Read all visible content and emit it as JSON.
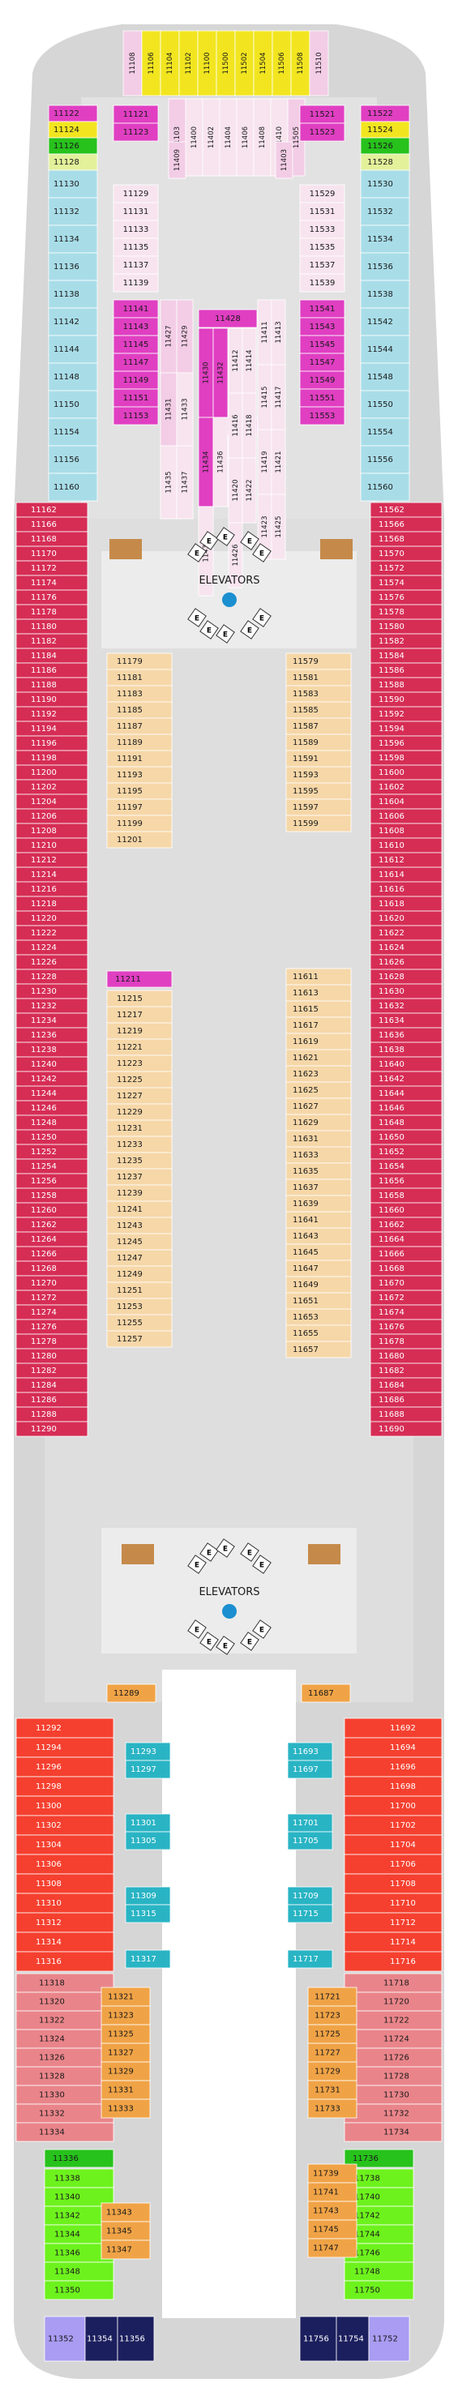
{
  "labels": {
    "elevators_fwd": "ELEVATORS",
    "elevators_aft": "ELEVATORS",
    "elevator_letter": "E"
  },
  "colors": {
    "hull": "#d6d6d6",
    "corridor": "#bdbdbd",
    "public": "#dcdcdc",
    "yellow": "#f2e520",
    "green": "#27c21c",
    "lime": "#e3f19a",
    "cyan": "#a8dde8",
    "cyan_dark": "#29b4c4",
    "magenta": "#e03fc2",
    "magenta_light": "#f3cde6",
    "pink_light": "#f7e4ee",
    "crimson": "#d62d55",
    "peach": "#f6d7a8",
    "red": "#f5402f",
    "salmon": "#e9858a",
    "orange": "#f0a346",
    "bright_green": "#6df21d",
    "lavender": "#a99cf2",
    "navy": "#1c1f5e",
    "elevator_blue": "#1b8fd0"
  },
  "cabins": {
    "fwd_suites_top": [
      "11108",
      "11106",
      "11104",
      "11102",
      "11100",
      "11500",
      "11502",
      "11504",
      "11506",
      "11508",
      "11510"
    ],
    "fwd_suites_mid": [
      "11103",
      "11400",
      "11402",
      "11404",
      "11406",
      "11408",
      "11410",
      "11505"
    ],
    "fwd_suites_low": [
      "11409",
      "11403"
    ],
    "port_fwd_outer": [
      "11122",
      "11124",
      "11126",
      "11128",
      "11130",
      "11132",
      "11134",
      "11136",
      "11138",
      "11142",
      "11144",
      "11148",
      "11150",
      "11154",
      "11156",
      "11160"
    ],
    "port_fwd_inner_a": [
      "11121",
      "11123"
    ],
    "port_fwd_inner_b": [
      "11129",
      "11131",
      "11133",
      "11135",
      "11137",
      "11139"
    ],
    "port_fwd_inner_c": [
      "11141",
      "11143",
      "11145",
      "11147",
      "11149",
      "11151",
      "11153"
    ],
    "stbd_fwd_outer": [
      "11522",
      "11524",
      "11526",
      "11528",
      "11530",
      "11532",
      "11534",
      "11536",
      "11538",
      "11542",
      "11544",
      "11548",
      "11550",
      "11554",
      "11556",
      "11560"
    ],
    "stbd_fwd_inner_a": [
      "11521",
      "11523"
    ],
    "stbd_fwd_inner_b": [
      "11529",
      "11531",
      "11533",
      "11535",
      "11537",
      "11539"
    ],
    "stbd_fwd_inner_c": [
      "11541",
      "11543",
      "11545",
      "11547",
      "11549",
      "11551",
      "11553"
    ],
    "center_top": "11428",
    "center_col_1": [
      "11427",
      "11429",
      "11431",
      "11433",
      "11435",
      "11437"
    ],
    "center_col_2": [
      "11430",
      "11432",
      "11434",
      "11436",
      "11438"
    ],
    "center_col_3": [
      "11412",
      "11414",
      "11416",
      "11418",
      "11420",
      "11422",
      "11426"
    ],
    "center_col_4": [
      "11411",
      "11413",
      "11415",
      "11417",
      "11419",
      "11421",
      "11423",
      "11425"
    ],
    "center_mid": "11420",
    "port_main_outer": [
      "11162",
      "11166",
      "11168",
      "11170",
      "11172",
      "11174",
      "11176",
      "11178",
      "11180",
      "11182",
      "11184",
      "11186",
      "11188",
      "11190",
      "11192",
      "11194",
      "11196",
      "11198",
      "11200",
      "11202",
      "11204",
      "11206",
      "11208",
      "11210",
      "11212",
      "11214",
      "11216",
      "11218",
      "11220",
      "11222",
      "11224",
      "11226",
      "11228",
      "11230",
      "11232",
      "11234",
      "11236",
      "11238",
      "11240",
      "11242",
      "11244",
      "11246",
      "11248",
      "11250",
      "11252",
      "11254",
      "11256",
      "11258",
      "11260",
      "11262",
      "11264",
      "11266",
      "11268",
      "11270",
      "11272",
      "11274",
      "11276",
      "11278",
      "11280",
      "11282",
      "11284",
      "11286",
      "11288",
      "11290"
    ],
    "stbd_main_outer": [
      "11562",
      "11566",
      "11568",
      "11570",
      "11572",
      "11574",
      "11576",
      "11578",
      "11580",
      "11582",
      "11584",
      "11586",
      "11588",
      "11590",
      "11592",
      "11594",
      "11596",
      "11598",
      "11600",
      "11602",
      "11604",
      "11606",
      "11608",
      "11610",
      "11612",
      "11614",
      "11616",
      "11618",
      "11620",
      "11622",
      "11624",
      "11626",
      "11628",
      "11630",
      "11632",
      "11634",
      "11636",
      "11638",
      "11640",
      "11642",
      "11644",
      "11646",
      "11648",
      "11650",
      "11652",
      "11654",
      "11656",
      "11658",
      "11660",
      "11662",
      "11664",
      "11666",
      "11668",
      "11670",
      "11672",
      "11674",
      "11676",
      "11678",
      "11680",
      "11682",
      "11684",
      "11686",
      "11688",
      "11690"
    ],
    "port_main_inner_1": [
      "11179",
      "11181",
      "11183",
      "11185",
      "11187",
      "11189",
      "11191",
      "11193",
      "11195",
      "11197",
      "11199",
      "11201"
    ],
    "port_main_inner_2_head": "11211",
    "port_main_inner_2": [
      "11215",
      "11217",
      "11219",
      "11221",
      "11223",
      "11225",
      "11227",
      "11229",
      "11231",
      "11233",
      "11235",
      "11237",
      "11239",
      "11241",
      "11243",
      "11245",
      "11247",
      "11249",
      "11251",
      "11253",
      "11255",
      "11257"
    ],
    "stbd_main_inner_1": [
      "11579",
      "11581",
      "11583",
      "11585",
      "11587",
      "11589",
      "11591",
      "11593",
      "11595",
      "11597",
      "11599"
    ],
    "stbd_main_inner_2": [
      "11611",
      "11613",
      "11615",
      "11617",
      "11619",
      "11621",
      "11623",
      "11625",
      "11627",
      "11629",
      "11631",
      "11633",
      "11635",
      "11637",
      "11639",
      "11641",
      "11643",
      "11645",
      "11647",
      "11649",
      "11651",
      "11653",
      "11655",
      "11657"
    ],
    "port_aft_single": "11289",
    "stbd_aft_single": "11687",
    "port_aft_outer_red": [
      "11292",
      "11294",
      "11296",
      "11298",
      "11300",
      "11302",
      "11304",
      "11306",
      "11308",
      "11310",
      "11312",
      "11314",
      "11316"
    ],
    "stbd_aft_outer_red": [
      "11692",
      "11694",
      "11696",
      "11698",
      "11700",
      "11702",
      "11704",
      "11706",
      "11708",
      "11710",
      "11712",
      "11714",
      "11716"
    ],
    "port_aft_inner_cyan": [
      "11293",
      "11297",
      "11301",
      "11305",
      "11309",
      "11315",
      "11317"
    ],
    "stbd_aft_inner_cyan": [
      "11693",
      "11697",
      "11701",
      "11705",
      "11709",
      "11715",
      "11717"
    ],
    "port_aft_outer_salmon": [
      "11318",
      "11320",
      "11322",
      "11324",
      "11326",
      "11328",
      "11330",
      "11332",
      "11334"
    ],
    "stbd_aft_outer_salmon": [
      "11718",
      "11720",
      "11722",
      "11724",
      "11726",
      "11728",
      "11730",
      "11732",
      "11734"
    ],
    "port_aft_inner_orange": [
      "11321",
      "11323",
      "11325",
      "11327",
      "11329",
      "11331",
      "11333"
    ],
    "stbd_aft_inner_orange": [
      "11721",
      "11723",
      "11725",
      "11727",
      "11729",
      "11731",
      "11733"
    ],
    "port_stern_green": "11336",
    "stbd_stern_green": "11736",
    "port_stern_outer": [
      "11338",
      "11340",
      "11342",
      "11344",
      "11346",
      "11348",
      "11350"
    ],
    "stbd_stern_outer": [
      "11738",
      "11740",
      "11742",
      "11744",
      "11746",
      "11748",
      "11750"
    ],
    "port_stern_inner": [
      "11343",
      "11345",
      "11347"
    ],
    "stbd_stern_inner": [
      "11739",
      "11741",
      "11743",
      "11745",
      "11747"
    ],
    "stern_port": [
      "11352",
      "11354",
      "11356"
    ],
    "stern_stbd": [
      "11756",
      "11754",
      "11752"
    ]
  }
}
